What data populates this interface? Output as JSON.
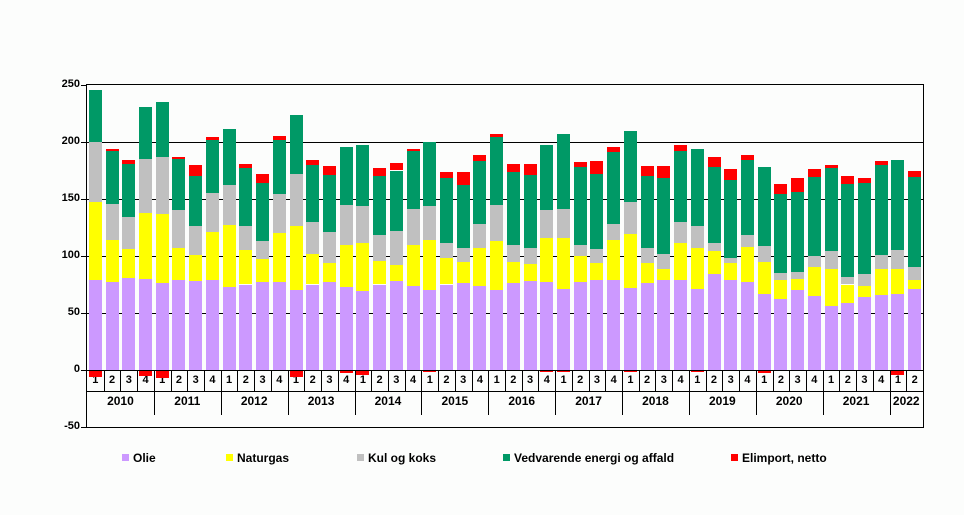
{
  "page": {
    "background": "#fcfdfc"
  },
  "chart_data": {
    "type": "bar",
    "stacked": true,
    "title": "",
    "grid": true,
    "legend_position": "bottom",
    "y_axis": {
      "min": -50,
      "max": 250,
      "tick_step": 50,
      "ticks": [
        250,
        200,
        150,
        100,
        50,
        0,
        -50
      ]
    },
    "x_axis": {
      "year_groups": [
        {
          "label": "2010",
          "quarters": [
            "1",
            "2",
            "3",
            "4"
          ]
        },
        {
          "label": "2011",
          "quarters": [
            "1",
            "2",
            "3",
            "4"
          ]
        },
        {
          "label": "2012",
          "quarters": [
            "1",
            "2",
            "3",
            "4"
          ]
        },
        {
          "label": "2013",
          "quarters": [
            "1",
            "2",
            "3",
            "4"
          ]
        },
        {
          "label": "2014",
          "quarters": [
            "1",
            "2",
            "3",
            "4"
          ]
        },
        {
          "label": "2015",
          "quarters": [
            "1",
            "2",
            "3",
            "4"
          ]
        },
        {
          "label": "2016",
          "quarters": [
            "1",
            "2",
            "3",
            "4"
          ]
        },
        {
          "label": "2017",
          "quarters": [
            "1",
            "2",
            "3",
            "4"
          ]
        },
        {
          "label": "2018",
          "quarters": [
            "1",
            "2",
            "3",
            "4"
          ]
        },
        {
          "label": "2019",
          "quarters": [
            "1",
            "2",
            "3",
            "4"
          ]
        },
        {
          "label": "2020",
          "quarters": [
            "1",
            "2",
            "3",
            "4"
          ]
        },
        {
          "label": "2021",
          "quarters": [
            "1",
            "2",
            "3",
            "4"
          ]
        },
        {
          "label": "2022",
          "quarters": [
            "1",
            "2"
          ]
        }
      ]
    },
    "series": [
      {
        "name": "Olie",
        "color": "#CC99FF",
        "values": [
          79,
          77,
          81,
          80,
          76,
          79,
          78,
          79,
          73,
          75,
          77,
          77,
          70,
          75,
          77,
          73,
          69,
          75,
          78,
          74,
          70,
          75,
          76,
          74,
          70,
          76,
          78,
          77,
          71,
          77,
          79,
          79,
          72,
          76,
          79,
          79,
          71,
          84,
          79,
          77,
          67,
          62,
          70,
          65,
          56,
          59,
          64,
          66,
          67,
          71
        ]
      },
      {
        "name": "Naturgas",
        "color": "#FFFF00",
        "values": [
          68,
          37,
          25,
          58,
          61,
          28,
          23,
          42,
          54,
          30,
          20,
          43,
          56,
          27,
          17,
          37,
          42,
          21,
          14,
          36,
          44,
          23,
          19,
          33,
          43,
          19,
          15,
          39,
          45,
          23,
          15,
          35,
          47,
          18,
          10,
          32,
          36,
          20,
          15,
          31,
          28,
          17,
          10,
          25,
          33,
          16,
          10,
          23,
          22,
          8
        ]
      },
      {
        "name": "Kul og koks",
        "color": "#C0C0C0",
        "values": [
          53,
          32,
          28,
          47,
          50,
          33,
          25,
          34,
          35,
          21,
          16,
          34,
          46,
          28,
          27,
          35,
          33,
          22,
          30,
          31,
          30,
          13,
          12,
          21,
          32,
          15,
          14,
          24,
          25,
          10,
          12,
          14,
          28,
          13,
          13,
          19,
          19,
          7,
          4,
          10,
          14,
          6,
          6,
          10,
          15,
          7,
          10,
          12,
          16,
          11
        ]
      },
      {
        "name": "Vedvarende energi og affald",
        "color": "#009966",
        "values": [
          46,
          46,
          47,
          46,
          48,
          45,
          44,
          47,
          49,
          51,
          51,
          48,
          52,
          50,
          50,
          51,
          53,
          52,
          53,
          51,
          56,
          57,
          55,
          55,
          59,
          64,
          64,
          57,
          66,
          68,
          66,
          63,
          63,
          63,
          66,
          62,
          68,
          67,
          69,
          66,
          69,
          69,
          70,
          69,
          73,
          81,
          80,
          79,
          79,
          79
        ]
      },
      {
        "name": "Elimport, netto",
        "color": "#FF0000",
        "values": [
          -6,
          2,
          3,
          -5,
          -7,
          2,
          10,
          2,
          -1,
          4,
          8,
          3,
          -6,
          4,
          8,
          -3,
          -4,
          7,
          7,
          2,
          -1.5,
          6,
          12,
          6,
          3,
          7,
          10,
          -2,
          -1.5,
          4.5,
          11,
          4.5,
          -2,
          9,
          11,
          5,
          -2,
          9,
          9,
          5,
          -2.5,
          9,
          12,
          7,
          3,
          7,
          4.5,
          3.5,
          -4,
          6
        ]
      }
    ],
    "legend": [
      {
        "label": "Olie",
        "color": "#CC99FF"
      },
      {
        "label": "Naturgas",
        "color": "#FFFF00"
      },
      {
        "label": "Kul og koks",
        "color": "#C0C0C0"
      },
      {
        "label": "Vedvarende energi og affald",
        "color": "#009966"
      },
      {
        "label": "Elimport, netto",
        "color": "#FF0000"
      }
    ]
  }
}
